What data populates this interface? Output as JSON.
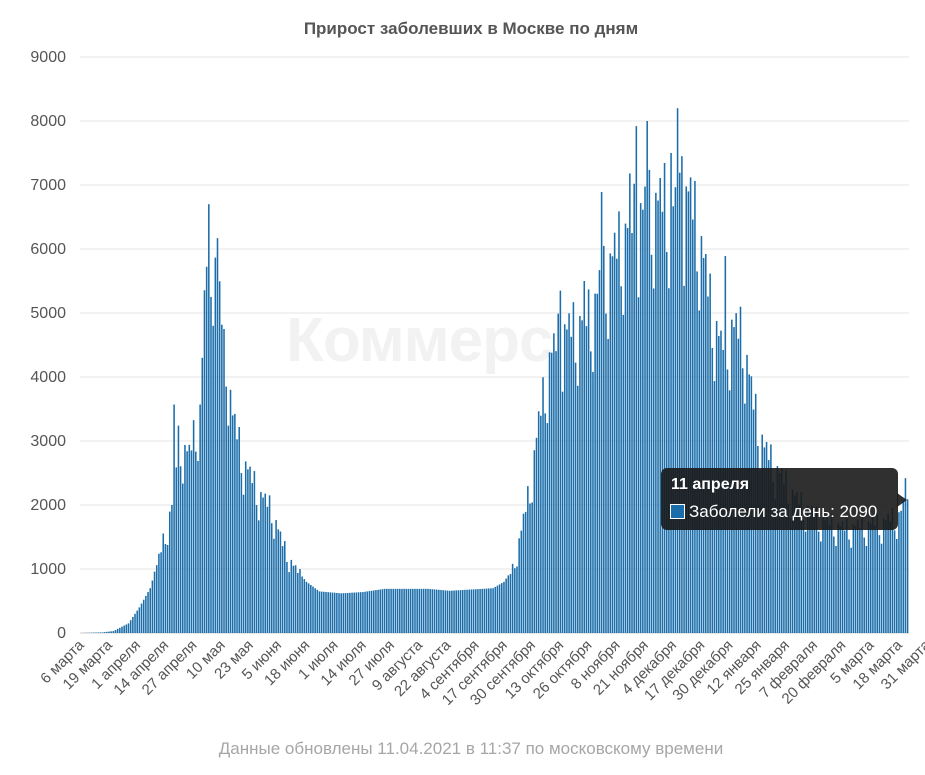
{
  "chart_data": {
    "type": "bar",
    "title": "Прирост заболевших в Москве по дням",
    "footer": "Данные обновлены 11.04.2021 в 11:37 по московскому времени",
    "watermark": "Коммерс",
    "ylim": [
      0,
      9000
    ],
    "y_ticks": [
      0,
      1000,
      2000,
      3000,
      4000,
      5000,
      6000,
      7000,
      8000,
      9000
    ],
    "grid": true,
    "bar_color": "#1c6eaa",
    "series_name": "Заболели за день",
    "x_tick_labels": [
      "6 марта",
      "19 марта",
      "1 апреля",
      "14 апреля",
      "27 апреля",
      "10 мая",
      "23 мая",
      "5 июня",
      "18 июня",
      "1 июля",
      "14 июля",
      "27 июля",
      "9 августа",
      "22 августа",
      "4 сентября",
      "17 сентября",
      "30 сентября",
      "13 октября",
      "26 октября",
      "8 ноября",
      "21 ноября",
      "4 декабря",
      "17 декабря",
      "30 декабря",
      "12 января",
      "25 января",
      "7 февраля",
      "20 февраля",
      "5 марта",
      "18 марта",
      "31 марта"
    ],
    "date_range": {
      "first": "6 марта",
      "last": "11 апреля"
    },
    "keypoints": [
      {
        "day": 0,
        "value": 0
      },
      {
        "day": 10,
        "value": 10
      },
      {
        "day": 15,
        "value": 30
      },
      {
        "day": 22,
        "value": 150
      },
      {
        "day": 27,
        "value": 400
      },
      {
        "day": 32,
        "value": 700
      },
      {
        "day": 37,
        "value": 1300
      },
      {
        "day": 42,
        "value": 2000
      },
      {
        "day": 45,
        "value": 3000
      },
      {
        "day": 50,
        "value": 2800
      },
      {
        "day": 55,
        "value": 3500
      },
      {
        "day": 58,
        "value": 5900
      },
      {
        "day": 61,
        "value": 6000
      },
      {
        "day": 63,
        "value": 5500
      },
      {
        "day": 66,
        "value": 4700
      },
      {
        "day": 70,
        "value": 3400
      },
      {
        "day": 75,
        "value": 2700
      },
      {
        "day": 82,
        "value": 2200
      },
      {
        "day": 88,
        "value": 1950
      },
      {
        "day": 93,
        "value": 1400
      },
      {
        "day": 98,
        "value": 1050
      },
      {
        "day": 104,
        "value": 800
      },
      {
        "day": 110,
        "value": 650
      },
      {
        "day": 120,
        "value": 620
      },
      {
        "day": 130,
        "value": 640
      },
      {
        "day": 140,
        "value": 690
      },
      {
        "day": 160,
        "value": 690
      },
      {
        "day": 170,
        "value": 660
      },
      {
        "day": 180,
        "value": 680
      },
      {
        "day": 190,
        "value": 700
      },
      {
        "day": 195,
        "value": 800
      },
      {
        "day": 199,
        "value": 1000
      },
      {
        "day": 203,
        "value": 1600
      },
      {
        "day": 207,
        "value": 2300
      },
      {
        "day": 211,
        "value": 3300
      },
      {
        "day": 216,
        "value": 4300
      },
      {
        "day": 221,
        "value": 4700
      },
      {
        "day": 228,
        "value": 4800
      },
      {
        "day": 235,
        "value": 5000
      },
      {
        "day": 241,
        "value": 5600
      },
      {
        "day": 248,
        "value": 6100
      },
      {
        "day": 255,
        "value": 6500
      },
      {
        "day": 262,
        "value": 6700
      },
      {
        "day": 269,
        "value": 6800
      },
      {
        "day": 275,
        "value": 6600
      },
      {
        "day": 280,
        "value": 6900
      },
      {
        "day": 285,
        "value": 6300
      },
      {
        "day": 290,
        "value": 5200
      },
      {
        "day": 295,
        "value": 4500
      },
      {
        "day": 300,
        "value": 4800
      },
      {
        "day": 305,
        "value": 4700
      },
      {
        "day": 310,
        "value": 3600
      },
      {
        "day": 315,
        "value": 2900
      },
      {
        "day": 322,
        "value": 2500
      },
      {
        "day": 330,
        "value": 2100
      },
      {
        "day": 340,
        "value": 1800
      },
      {
        "day": 352,
        "value": 1650
      },
      {
        "day": 362,
        "value": 1700
      },
      {
        "day": 370,
        "value": 1750
      },
      {
        "day": 377,
        "value": 1850
      },
      {
        "day": 381,
        "value": 2090
      }
    ],
    "spikes": [
      {
        "day": 43,
        "value": 3570
      },
      {
        "day": 59,
        "value": 6700
      },
      {
        "day": 63,
        "value": 6170
      },
      {
        "day": 66,
        "value": 4750
      },
      {
        "day": 78,
        "value": 2600
      },
      {
        "day": 221,
        "value": 5350
      },
      {
        "day": 232,
        "value": 5500
      },
      {
        "day": 240,
        "value": 6890
      },
      {
        "day": 253,
        "value": 7180
      },
      {
        "day": 256,
        "value": 7920
      },
      {
        "day": 261,
        "value": 8000
      },
      {
        "day": 272,
        "value": 7500
      },
      {
        "day": 275,
        "value": 8200
      },
      {
        "day": 277,
        "value": 7450
      },
      {
        "day": 297,
        "value": 5890
      },
      {
        "day": 380,
        "value": 2420
      }
    ],
    "tooltip": {
      "date": "11 апреля",
      "label": "Заболели за день: 2090",
      "value": 2090
    }
  }
}
